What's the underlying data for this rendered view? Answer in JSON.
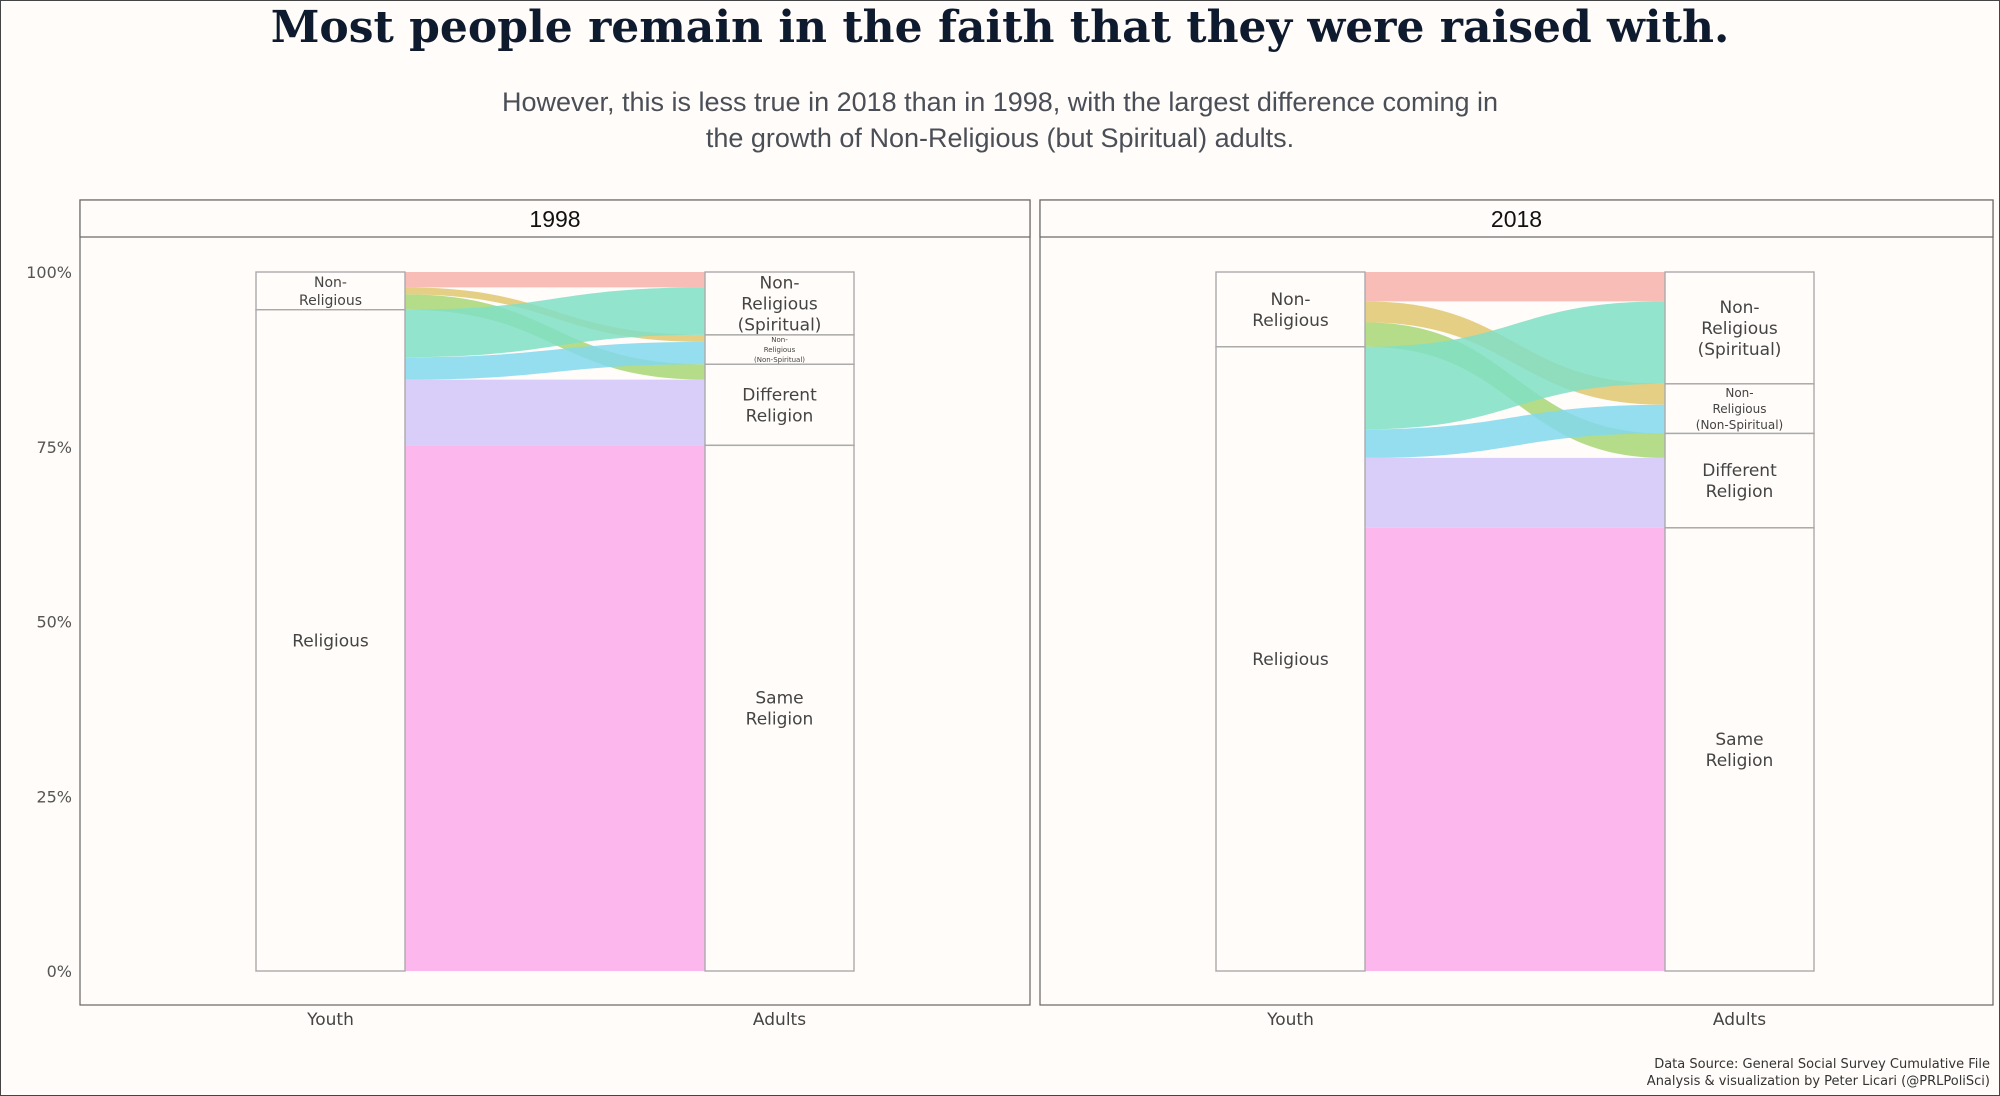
{
  "title": "Most people remain in the faith that they were raised with.",
  "subtitle_line1": "However, this is less true in 2018 than in 1998, with the largest difference coming in",
  "subtitle_line2": "the growth of Non-Religious (but Spiritual) adults.",
  "caption_line1": "Data Source: General Social Survey Cumulative File",
  "caption_line2": "Analysis & visualization by Peter Licari (@PRLPoliSci)",
  "chart_data": {
    "type": "alluvial",
    "y_ticks": [
      "0%",
      "25%",
      "50%",
      "75%",
      "100%"
    ],
    "ylim": [
      0,
      1
    ],
    "x_axis_labels": [
      "Youth",
      "Adults"
    ],
    "colors": {
      "salmon": "#f8b2ac",
      "tan": "#e0c771",
      "green": "#a8d675",
      "teal": "#80dfc6",
      "cyan": "#82d8ef",
      "lavender": "#d2c5fa",
      "pink": "#fbacea"
    },
    "panels": [
      {
        "facet": "1998",
        "youth_nodes": [
          {
            "label": "Non-\nReligious",
            "value": 0.054
          },
          {
            "label": "Religious",
            "value": 0.946
          }
        ],
        "adult_nodes": [
          {
            "label": "Non-\nReligious\n(Spiritual)",
            "value": 0.09,
            "size": "normal"
          },
          {
            "label": "Non-\nReligious\n(Non-Spiritual)",
            "value": 0.042,
            "size": "tiny"
          },
          {
            "label": "Different\nReligion",
            "value": 0.116,
            "size": "normal"
          },
          {
            "label": "Same\nReligion",
            "value": 0.752,
            "size": "normal"
          }
        ],
        "flows": [
          {
            "from": "Non-Religious",
            "to": "Non-Religious (Spiritual)",
            "value": 0.022,
            "color": "salmon"
          },
          {
            "from": "Non-Religious",
            "to": "Non-Religious (Non-Spiritual)",
            "value": 0.01,
            "color": "tan"
          },
          {
            "from": "Non-Religious",
            "to": "Different Religion",
            "value": 0.022,
            "color": "green"
          },
          {
            "from": "Religious",
            "to": "Non-Religious (Spiritual)",
            "value": 0.068,
            "color": "teal"
          },
          {
            "from": "Religious",
            "to": "Non-Religious (Non-Spiritual)",
            "value": 0.032,
            "color": "cyan"
          },
          {
            "from": "Religious",
            "to": "Different Religion",
            "value": 0.094,
            "color": "lavender"
          },
          {
            "from": "Religious",
            "to": "Same Religion",
            "value": 0.752,
            "color": "pink"
          }
        ]
      },
      {
        "facet": "2018",
        "youth_nodes": [
          {
            "label": "Non-\nReligious",
            "value": 0.107
          },
          {
            "label": "Religious",
            "value": 0.893
          }
        ],
        "adult_nodes": [
          {
            "label": "Non-\nReligious\n(Spiritual)",
            "value": 0.16,
            "size": "normal"
          },
          {
            "label": "Non-\nReligious\n(Non-Spiritual)",
            "value": 0.071,
            "size": "small"
          },
          {
            "label": "Different\nReligion",
            "value": 0.135,
            "size": "normal"
          },
          {
            "label": "Same\nReligion",
            "value": 0.634,
            "size": "normal"
          }
        ],
        "flows": [
          {
            "from": "Non-Religious",
            "to": "Non-Religious (Spiritual)",
            "value": 0.042,
            "color": "salmon"
          },
          {
            "from": "Non-Religious",
            "to": "Non-Religious (Non-Spiritual)",
            "value": 0.03,
            "color": "tan"
          },
          {
            "from": "Non-Religious",
            "to": "Different Religion",
            "value": 0.035,
            "color": "green"
          },
          {
            "from": "Religious",
            "to": "Non-Religious (Spiritual)",
            "value": 0.118,
            "color": "teal"
          },
          {
            "from": "Religious",
            "to": "Non-Religious (Non-Spiritual)",
            "value": 0.041,
            "color": "cyan"
          },
          {
            "from": "Religious",
            "to": "Different Religion",
            "value": 0.1,
            "color": "lavender"
          },
          {
            "from": "Religious",
            "to": "Same Religion",
            "value": 0.634,
            "color": "pink"
          }
        ]
      }
    ]
  }
}
